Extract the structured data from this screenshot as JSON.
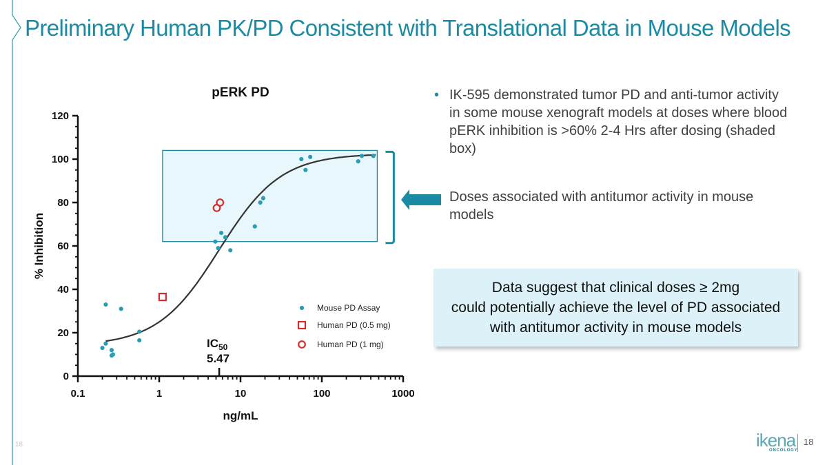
{
  "slide": {
    "title": "Preliminary Human PK/PD Consistent with Translational Data in Mouse Models",
    "page_number": "18",
    "footer_left": "18",
    "brand": {
      "word": "ikena",
      "sub": "ONCOLOGY"
    },
    "colors": {
      "accent": "#1b8ba3",
      "mouse": "#2a9db3",
      "human": "#d62b2b",
      "box_fill": "#e8f7fb",
      "callout_bg": "#ddf2f8"
    }
  },
  "bullets": [
    "IK-595 demonstrated tumor PD and anti-tumor activity in some mouse xenograft models at doses where blood pERK inhibition is >60% 2-4 Hrs after dosing (shaded box)",
    "Doses associated with antitumor activity in mouse models"
  ],
  "callout": {
    "lines": [
      "Data suggest that clinical doses ≥ 2mg",
      "could potentially achieve the level of PD associated",
      "with antitumor activity in mouse models"
    ]
  },
  "chart_data": {
    "type": "scatter",
    "title": "pERK PD",
    "xlabel": "ng/mL",
    "ylabel": "% Inhibition",
    "xscale": "log",
    "xlim": [
      0.1,
      1000
    ],
    "ylim": [
      0,
      120
    ],
    "xticks": [
      0.1,
      1,
      10,
      100,
      1000
    ],
    "xtick_labels": [
      "0.1",
      "1",
      "10",
      "100",
      "1000"
    ],
    "yticks": [
      0,
      20,
      40,
      60,
      80,
      100,
      120
    ],
    "ytick_labels": [
      "0",
      "20",
      "40",
      "60",
      "80",
      "100",
      "120"
    ],
    "shaded_box": {
      "x": [
        1.1,
        480
      ],
      "y": [
        62,
        104
      ]
    },
    "annotation": {
      "label": "IC",
      "sub": "50",
      "value": "5.47",
      "x": 5.47
    },
    "fit": {
      "bottom": 14,
      "top": 102.5,
      "ic50": 5.47,
      "hill": 1.15,
      "x_range": [
        0.22,
        460
      ]
    },
    "legend_position": "right",
    "series": [
      {
        "name": "Mouse PD Assay",
        "marker": "dot",
        "points": [
          [
            0.22,
            33
          ],
          [
            0.2,
            13
          ],
          [
            0.22,
            15
          ],
          [
            0.26,
            12
          ],
          [
            0.26,
            9.5
          ],
          [
            0.27,
            10
          ],
          [
            0.34,
            31
          ],
          [
            0.57,
            20.5
          ],
          [
            0.57,
            16.5
          ],
          [
            4.9,
            62
          ],
          [
            5.3,
            59
          ],
          [
            5.8,
            66
          ],
          [
            6.5,
            64
          ],
          [
            7.5,
            58
          ],
          [
            15,
            69
          ],
          [
            17.5,
            80
          ],
          [
            19,
            82
          ],
          [
            56,
            100
          ],
          [
            63,
            95
          ],
          [
            72,
            101
          ],
          [
            280,
            99
          ],
          [
            310,
            101.5
          ],
          [
            430,
            101.5
          ]
        ]
      },
      {
        "name": "Human PD (0.5 mg)",
        "marker": "square",
        "points": [
          [
            1.1,
            36.5
          ]
        ]
      },
      {
        "name": "Human PD (1 mg)",
        "marker": "circle",
        "points": [
          [
            5.1,
            77.5
          ],
          [
            5.6,
            80
          ]
        ]
      }
    ]
  }
}
